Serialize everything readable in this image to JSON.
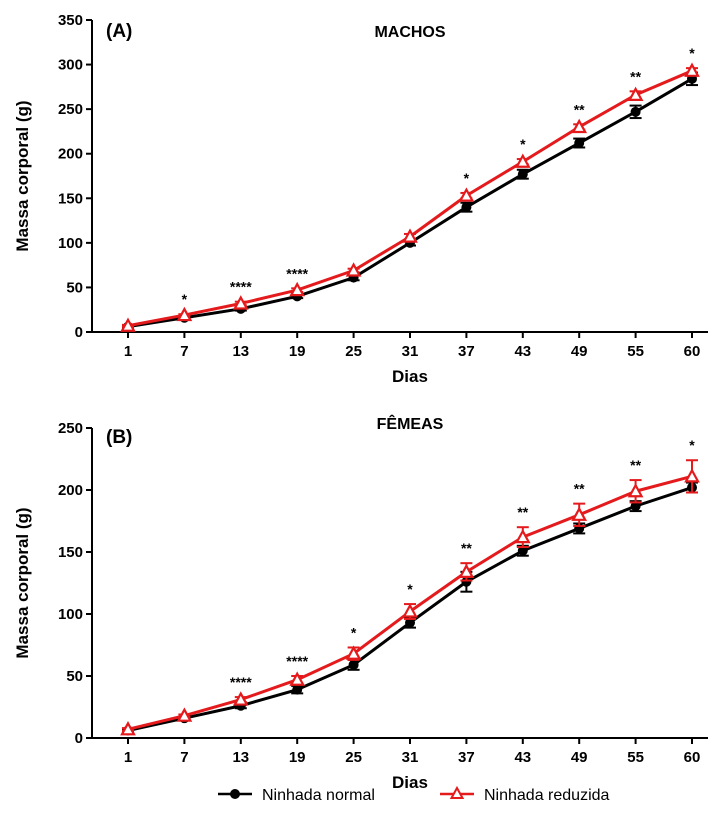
{
  "chart_data": [
    {
      "type": "line",
      "panel_label": "(A)",
      "title": "MACHOS",
      "xlabel": "Dias",
      "ylabel": "Massa corporal (g)",
      "categories": [
        "1",
        "7",
        "13",
        "19",
        "25",
        "31",
        "37",
        "43",
        "49",
        "55",
        "60"
      ],
      "ylim": [
        0,
        350
      ],
      "yticks": [
        0,
        50,
        100,
        150,
        200,
        250,
        300,
        350
      ],
      "series": [
        {
          "name": "Ninhada normal",
          "color": "#000000",
          "marker": "circle",
          "values": [
            6,
            16,
            26,
            40,
            61,
            100,
            140,
            177,
            212,
            247,
            284
          ],
          "errors": [
            1,
            1,
            2,
            2,
            3,
            3,
            5,
            5,
            5,
            7,
            7
          ]
        },
        {
          "name": "Ninhada reduzida",
          "color": "#e41a1c",
          "marker": "triangle",
          "values": [
            7,
            19,
            32,
            47,
            69,
            107,
            153,
            191,
            230,
            266,
            293
          ],
          "errors": [
            1,
            1,
            2,
            2,
            2,
            3,
            3,
            3,
            3,
            4,
            3
          ]
        }
      ],
      "annotations": [
        "",
        "*",
        "****",
        "****",
        "",
        "",
        "*",
        "*",
        "**",
        "**",
        "*"
      ]
    },
    {
      "type": "line",
      "panel_label": "(B)",
      "title": "FÊMEAS",
      "xlabel": "Dias",
      "ylabel": "Massa corporal (g)",
      "categories": [
        "1",
        "7",
        "13",
        "19",
        "25",
        "31",
        "37",
        "43",
        "49",
        "55",
        "60"
      ],
      "ylim": [
        0,
        250
      ],
      "yticks": [
        0,
        50,
        100,
        150,
        200,
        250
      ],
      "series": [
        {
          "name": "Ninhada normal",
          "color": "#000000",
          "marker": "circle",
          "values": [
            6,
            16,
            26,
            39,
            59,
            93,
            126,
            151,
            169,
            187,
            202
          ],
          "errors": [
            1,
            1,
            2,
            3,
            4,
            4,
            8,
            4,
            4,
            4,
            4
          ]
        },
        {
          "name": "Ninhada reduzida",
          "color": "#e41a1c",
          "marker": "triangle",
          "values": [
            7,
            18,
            31,
            47,
            68,
            102,
            134,
            162,
            180,
            199,
            211
          ],
          "errors": [
            1,
            1,
            2,
            3,
            5,
            6,
            7,
            8,
            9,
            9,
            13
          ]
        }
      ],
      "annotations": [
        "",
        "",
        "****",
        "****",
        "*",
        "*",
        "**",
        "**",
        "**",
        "**",
        "*"
      ]
    }
  ],
  "legend": {
    "position": "bottom-center",
    "items": [
      {
        "label": "Ninhada normal",
        "color": "#000000",
        "marker": "circle"
      },
      {
        "label": "Ninhada reduzida",
        "color": "#e41a1c",
        "marker": "triangle"
      }
    ]
  }
}
